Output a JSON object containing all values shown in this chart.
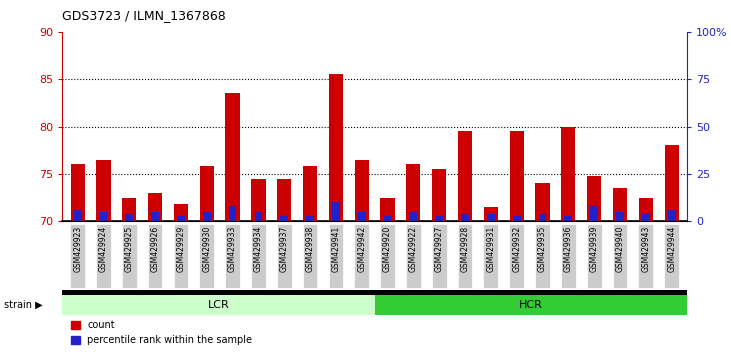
{
  "title": "GDS3723 / ILMN_1367868",
  "samples": [
    "GSM429923",
    "GSM429924",
    "GSM429925",
    "GSM429926",
    "GSM429929",
    "GSM429930",
    "GSM429933",
    "GSM429934",
    "GSM429937",
    "GSM429938",
    "GSM429941",
    "GSM429942",
    "GSM429920",
    "GSM429922",
    "GSM429927",
    "GSM429928",
    "GSM429931",
    "GSM429932",
    "GSM429935",
    "GSM429936",
    "GSM429939",
    "GSM429940",
    "GSM429943",
    "GSM429944"
  ],
  "count_values": [
    76.0,
    76.5,
    72.5,
    73.0,
    71.8,
    75.8,
    83.5,
    74.5,
    74.5,
    75.8,
    85.5,
    76.5,
    72.5,
    76.0,
    75.5,
    79.5,
    71.5,
    79.5,
    74.0,
    80.0,
    74.8,
    73.5,
    72.5,
    78.0
  ],
  "percentile_values": [
    6,
    5,
    4,
    5,
    3,
    5,
    8,
    5,
    3,
    3,
    10,
    5,
    3,
    5,
    3,
    4,
    4,
    3,
    4,
    3,
    8,
    5,
    4,
    6
  ],
  "lcr_count": 12,
  "hcr_count": 12,
  "ylim_left": [
    70,
    90
  ],
  "ylim_right": [
    0,
    100
  ],
  "yticks_left": [
    70,
    75,
    80,
    85,
    90
  ],
  "ytick_labels_right": [
    "0",
    "25",
    "50",
    "75",
    "100%"
  ],
  "bar_color_red": "#cc0000",
  "bar_color_blue": "#2222cc",
  "lcr_color": "#ccffcc",
  "hcr_color": "#33cc33",
  "tick_bg_color": "#cccccc",
  "dotted_yticks": [
    75,
    80,
    85
  ],
  "bar_width": 0.55
}
